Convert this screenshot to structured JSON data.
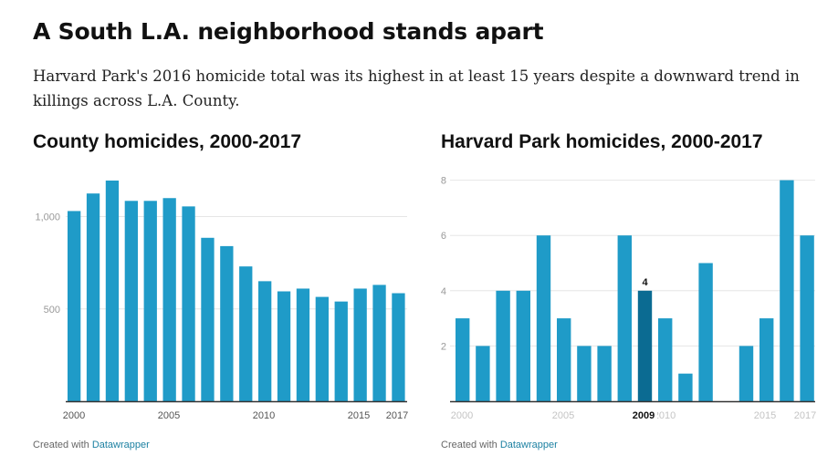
{
  "header": {
    "title": "A South L.A. neighborhood stands apart",
    "subtitle": "Harvard Park's 2016 homicide total was its highest in at least 15 years despite a downward trend in killings across L.A. County."
  },
  "credit": {
    "prefix": "Created with ",
    "link": "Datawrapper"
  },
  "colors": {
    "bar": "#1f9bc8",
    "highlight": "#0b6b92",
    "grid": "#e6e6e6",
    "axis": "#333333"
  },
  "chart_data": [
    {
      "type": "bar",
      "title": "County homicides, 2000-2017",
      "x": [
        2000,
        2001,
        2002,
        2003,
        2004,
        2005,
        2006,
        2007,
        2008,
        2009,
        2010,
        2011,
        2012,
        2013,
        2014,
        2015,
        2016,
        2017
      ],
      "values": [
        1030,
        1125,
        1195,
        1085,
        1085,
        1100,
        1055,
        885,
        840,
        730,
        650,
        595,
        610,
        565,
        540,
        610,
        630,
        585
      ],
      "xticks": [
        "2000",
        "2005",
        "2010",
        "2015",
        "2017"
      ],
      "yticks": [
        "500",
        "1,000"
      ],
      "ylim": [
        0,
        1200
      ],
      "grid": true
    },
    {
      "type": "bar",
      "title": "Harvard Park homicides, 2000-2017",
      "x": [
        2000,
        2001,
        2002,
        2003,
        2004,
        2005,
        2006,
        2007,
        2008,
        2009,
        2010,
        2011,
        2012,
        2013,
        2014,
        2015,
        2016,
        2017
      ],
      "values": [
        3,
        2,
        4,
        4,
        6,
        3,
        2,
        2,
        6,
        4,
        3,
        1,
        5,
        0,
        2,
        3,
        8,
        6
      ],
      "xticks": [
        "2000",
        "2005",
        "2009",
        "2010",
        "2015",
        "2017"
      ],
      "yticks": [
        "2",
        "4",
        "6",
        "8"
      ],
      "ylim": [
        0,
        8
      ],
      "grid": true,
      "highlight": {
        "x": 2009,
        "label": "4",
        "xlabel": "2009"
      }
    }
  ]
}
